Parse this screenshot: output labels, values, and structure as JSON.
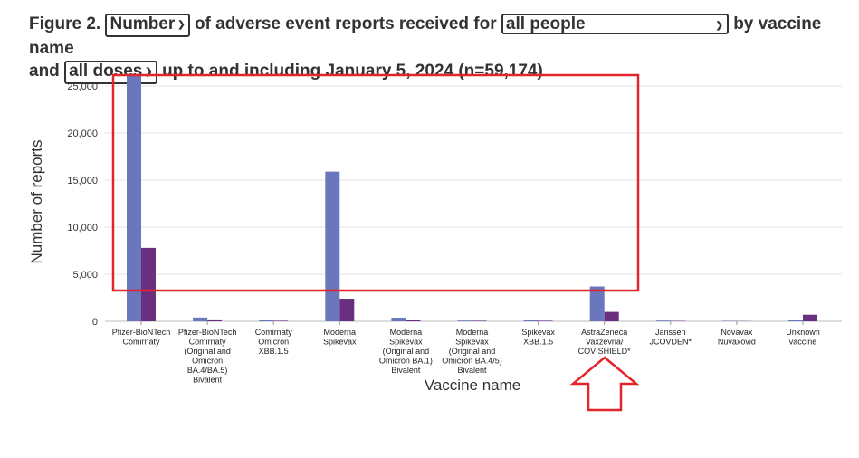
{
  "figure": {
    "label": "Figure 2.",
    "measure_select": "Number",
    "text1": "of adverse event reports received for",
    "population_select": "all people",
    "text2": "by vaccine name",
    "text3": "and",
    "dose_select": "all doses",
    "text4": "up to and including January 5, 2024 (n=59,174)"
  },
  "chart_data": {
    "type": "bar",
    "xlabel": "Vaccine name",
    "ylabel": "Number of reports",
    "ylim": [
      0,
      26000
    ],
    "yticks": [
      0,
      5000,
      10000,
      15000,
      20000,
      25000
    ],
    "ytick_labels": [
      "0",
      "5,000",
      "10,000",
      "15,000",
      "20,000",
      "25,000"
    ],
    "grid": true,
    "categories": [
      [
        "Pfizer-BioNTech",
        "Comirnaty"
      ],
      [
        "Pfizer-BioNTech",
        "Comirnaty",
        "(Original and",
        "Omicron",
        "BA.4/BA.5)",
        "Bivalent"
      ],
      [
        "Comirnaty",
        "Omicron",
        "XBB.1.5"
      ],
      [
        "Moderna",
        "Spikevax"
      ],
      [
        "Moderna",
        "Spikevax",
        "(Original and",
        "Omicron BA.1)",
        "Bivalent"
      ],
      [
        "Moderna",
        "Spikevax",
        "(Original and",
        "Omicron BA.4/5)",
        "Bivalent"
      ],
      [
        "Spikevax",
        "XBB.1.5"
      ],
      [
        "AstraZeneca",
        "Vaxzevria/",
        "COVISHIELD*"
      ],
      [
        "Janssen",
        "JCOVDEN*"
      ],
      [
        "Novavax",
        "Nuvaxovid"
      ],
      [
        "Unknown",
        "vaccine"
      ]
    ],
    "series": [
      {
        "color": "#6b77bd",
        "values": [
          26200,
          400,
          120,
          15900,
          380,
          80,
          160,
          3700,
          80,
          50,
          150
        ]
      },
      {
        "color": "#6b2f7f",
        "values": [
          7800,
          200,
          60,
          2400,
          130,
          60,
          60,
          1000,
          40,
          20,
          700
        ]
      }
    ]
  },
  "annotations": {
    "highlight_box_color": "#e0252b",
    "arrow_color": "#e0252b"
  }
}
